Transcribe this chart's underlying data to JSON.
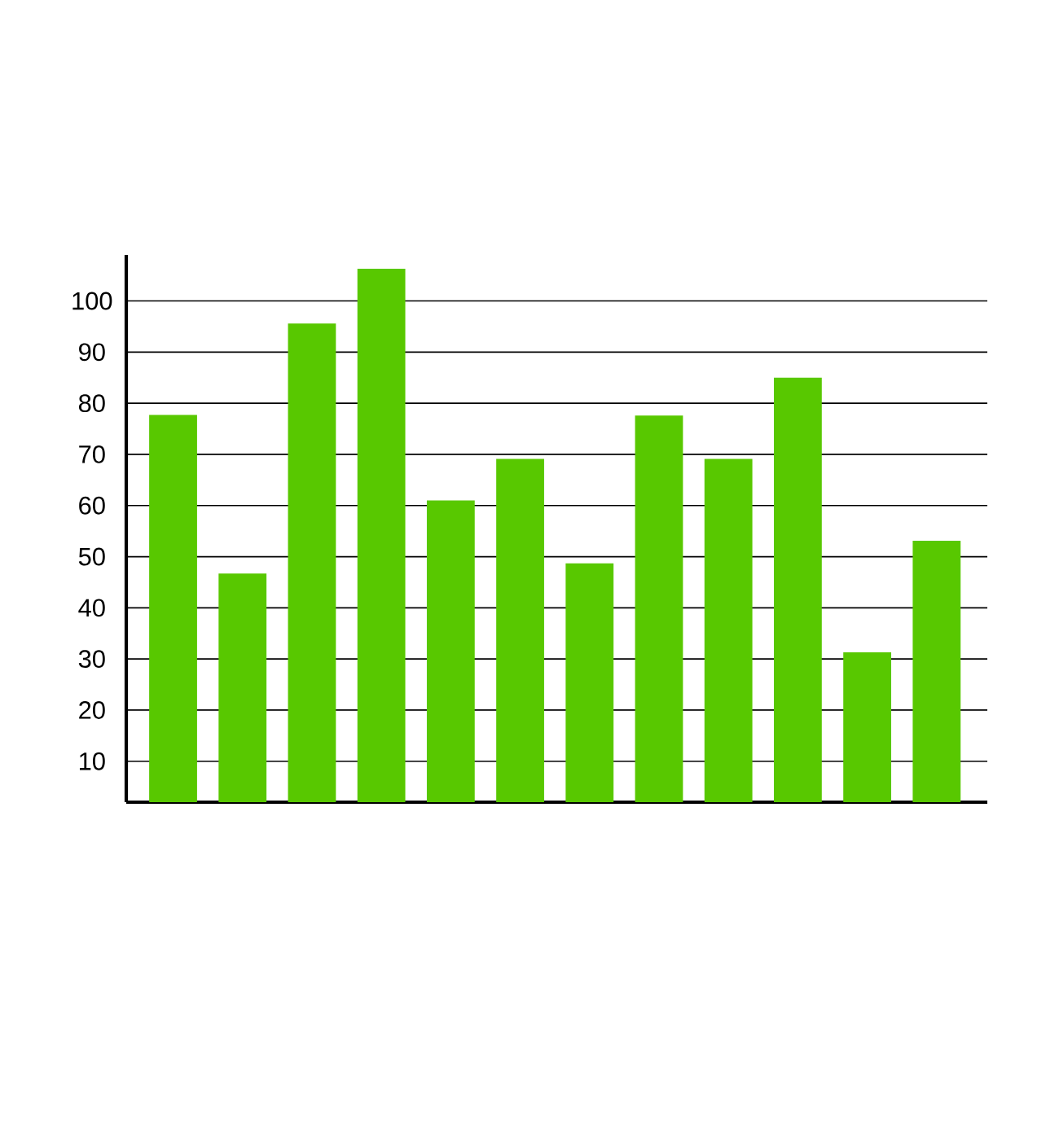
{
  "chart_data": {
    "type": "bar",
    "categories": [
      null,
      null,
      null,
      null,
      null,
      null,
      null,
      null,
      null,
      null,
      null,
      null
    ],
    "values": [
      77.7,
      46.7,
      95.6,
      106.3,
      61.0,
      69.1,
      48.7,
      77.6,
      69.1,
      85.0,
      31.3,
      53.1
    ],
    "color": "#58c800",
    "ylim": [
      2,
      109
    ],
    "yticks": [
      10,
      20,
      30,
      40,
      50,
      60,
      70,
      80,
      90,
      100
    ],
    "grid": "y"
  }
}
